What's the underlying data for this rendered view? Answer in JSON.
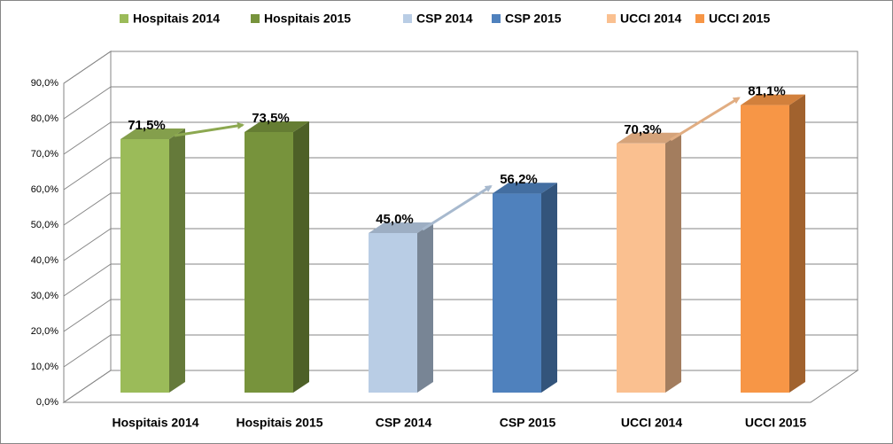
{
  "chart_data": {
    "type": "bar3d",
    "categories": [
      "Hospitais  2014",
      "Hospitais 2015",
      "CSP 2014",
      "CSP 2015",
      "UCCI 2014",
      "UCCI 2015"
    ],
    "values": [
      71.5,
      73.5,
      45.0,
      56.2,
      70.3,
      81.1
    ],
    "value_labels": [
      "71,5%",
      "73,5%",
      "45,0%",
      "56,2%",
      "70,3%",
      "81,1%"
    ],
    "colors": [
      "#9bbb59",
      "#77933c",
      "#b9cde5",
      "#4f81bd",
      "#fac090",
      "#f79646"
    ],
    "ylim": [
      0,
      90
    ],
    "yticks": [
      {
        "value": 0,
        "label": "0,0%"
      },
      {
        "value": 10,
        "label": "10,0%"
      },
      {
        "value": 20,
        "label": "20,0%"
      },
      {
        "value": 30,
        "label": "30,0%"
      },
      {
        "value": 40,
        "label": "40,0%"
      },
      {
        "value": 50,
        "label": "50,0%"
      },
      {
        "value": 60,
        "label": "60,0%"
      },
      {
        "value": 70,
        "label": "70,0%"
      },
      {
        "value": 80,
        "label": "80,0%"
      },
      {
        "value": 90,
        "label": "90,0%"
      }
    ],
    "grid": true,
    "legend": "top"
  }
}
